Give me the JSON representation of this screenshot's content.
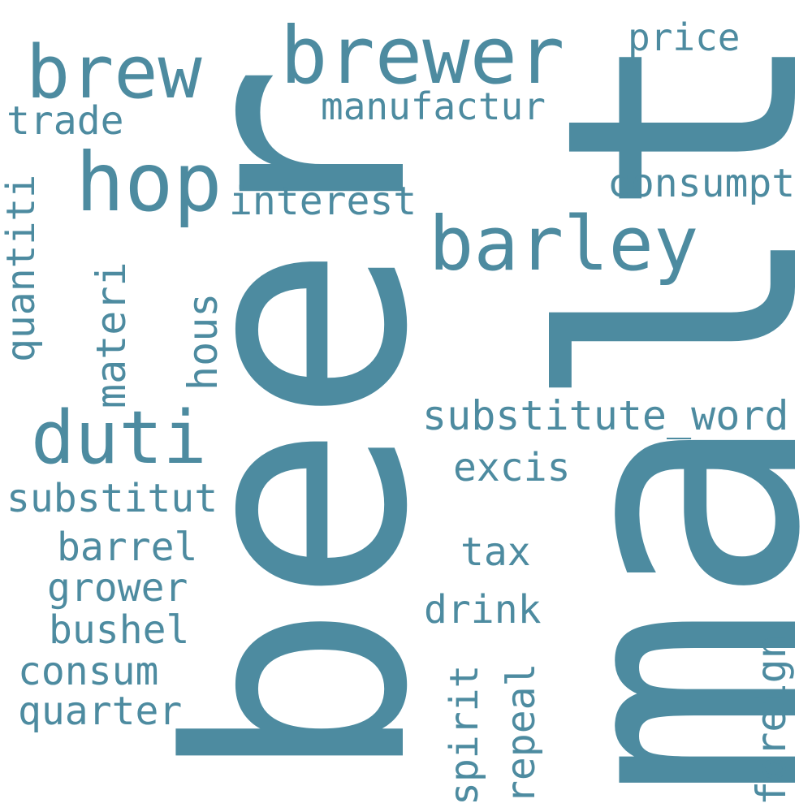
{
  "palette": {
    "background": "#ffffff",
    "word_color": "#4d8ba0"
  },
  "words": {
    "beer": "beer",
    "malt": "malt",
    "brewer": "brewer",
    "brew": "brew",
    "hop": "hop",
    "barley": "barley",
    "duti": "duti",
    "price": "price",
    "manufactur": "manufactur",
    "trade": "trade",
    "consumpt": "consumpt",
    "interest": "interest",
    "quantiti": "quantiti",
    "materi": "materi",
    "hous": "hous",
    "substitute_word": "substitute_word",
    "excis": "excis",
    "substitut": "substitut",
    "tax": "tax",
    "barrel": "barrel",
    "grower": "grower",
    "drink": "drink",
    "bushel": "bushel",
    "consum": "consum",
    "quarter": "quarter",
    "spirit": "spirit",
    "repeal": "repeal",
    "foreign": "foreign"
  }
}
